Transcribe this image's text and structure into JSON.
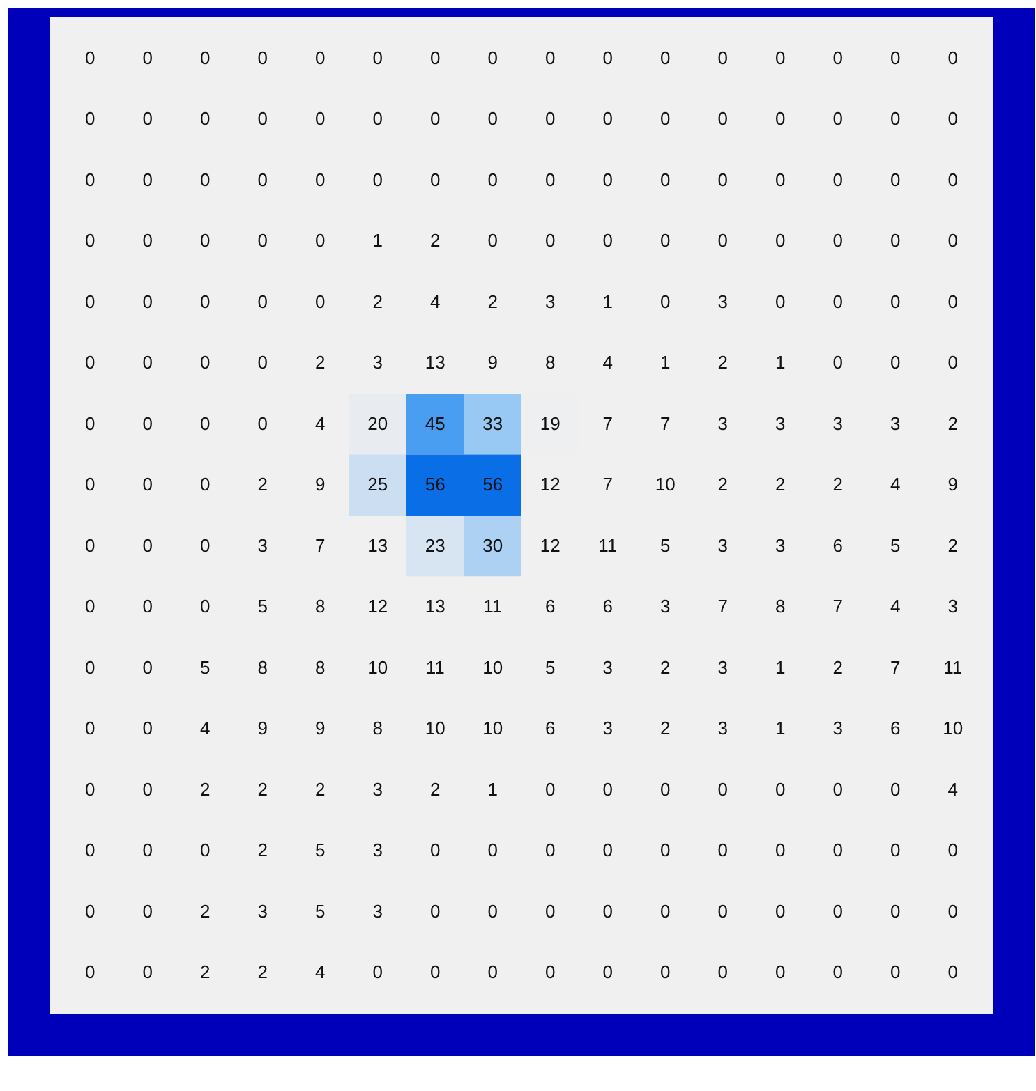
{
  "chart_data": {
    "type": "heatmap",
    "categories": [
      null,
      null,
      null,
      null,
      null,
      null,
      null,
      null,
      null,
      null,
      null,
      null,
      null,
      null,
      null,
      null
    ],
    "y_categories": [
      null,
      null,
      null,
      null,
      null,
      null,
      null,
      null,
      null,
      null,
      null,
      null,
      null,
      null,
      null,
      null
    ],
    "cells": [
      [
        0,
        0,
        0,
        0,
        0,
        0,
        0,
        0,
        0,
        0,
        0,
        0,
        0,
        0,
        0,
        0
      ],
      [
        0,
        0,
        0,
        0,
        0,
        0,
        0,
        0,
        0,
        0,
        0,
        0,
        0,
        0,
        0,
        0
      ],
      [
        0,
        0,
        0,
        0,
        0,
        0,
        0,
        0,
        0,
        0,
        0,
        0,
        0,
        0,
        0,
        0
      ],
      [
        0,
        0,
        0,
        0,
        0,
        1,
        2,
        0,
        0,
        0,
        0,
        0,
        0,
        0,
        0,
        0
      ],
      [
        0,
        0,
        0,
        0,
        0,
        2,
        4,
        2,
        3,
        1,
        0,
        3,
        0,
        0,
        0,
        0
      ],
      [
        0,
        0,
        0,
        0,
        2,
        3,
        13,
        9,
        8,
        4,
        1,
        2,
        1,
        0,
        0,
        0
      ],
      [
        0,
        0,
        0,
        0,
        4,
        20,
        45,
        33,
        19,
        7,
        7,
        3,
        3,
        3,
        3,
        2
      ],
      [
        0,
        0,
        0,
        2,
        9,
        25,
        56,
        56,
        12,
        7,
        10,
        2,
        2,
        2,
        4,
        9
      ],
      [
        0,
        0,
        0,
        3,
        7,
        13,
        23,
        30,
        12,
        11,
        5,
        3,
        3,
        6,
        5,
        2
      ],
      [
        0,
        0,
        0,
        5,
        8,
        12,
        13,
        11,
        6,
        6,
        3,
        7,
        8,
        7,
        4,
        3
      ],
      [
        0,
        0,
        5,
        8,
        8,
        10,
        11,
        10,
        5,
        3,
        2,
        3,
        1,
        2,
        7,
        11
      ],
      [
        0,
        0,
        4,
        9,
        9,
        8,
        10,
        10,
        6,
        3,
        2,
        3,
        1,
        3,
        6,
        10
      ],
      [
        0,
        0,
        2,
        2,
        2,
        3,
        2,
        1,
        0,
        0,
        0,
        0,
        0,
        0,
        0,
        4
      ],
      [
        0,
        0,
        0,
        2,
        5,
        3,
        0,
        0,
        0,
        0,
        0,
        0,
        0,
        0,
        0,
        0
      ],
      [
        0,
        0,
        2,
        3,
        5,
        3,
        0,
        0,
        0,
        0,
        0,
        0,
        0,
        0,
        0,
        0
      ],
      [
        0,
        0,
        2,
        2,
        4,
        0,
        0,
        0,
        0,
        0,
        0,
        0,
        0,
        0,
        0,
        0
      ]
    ],
    "data_labels": true
  }
}
